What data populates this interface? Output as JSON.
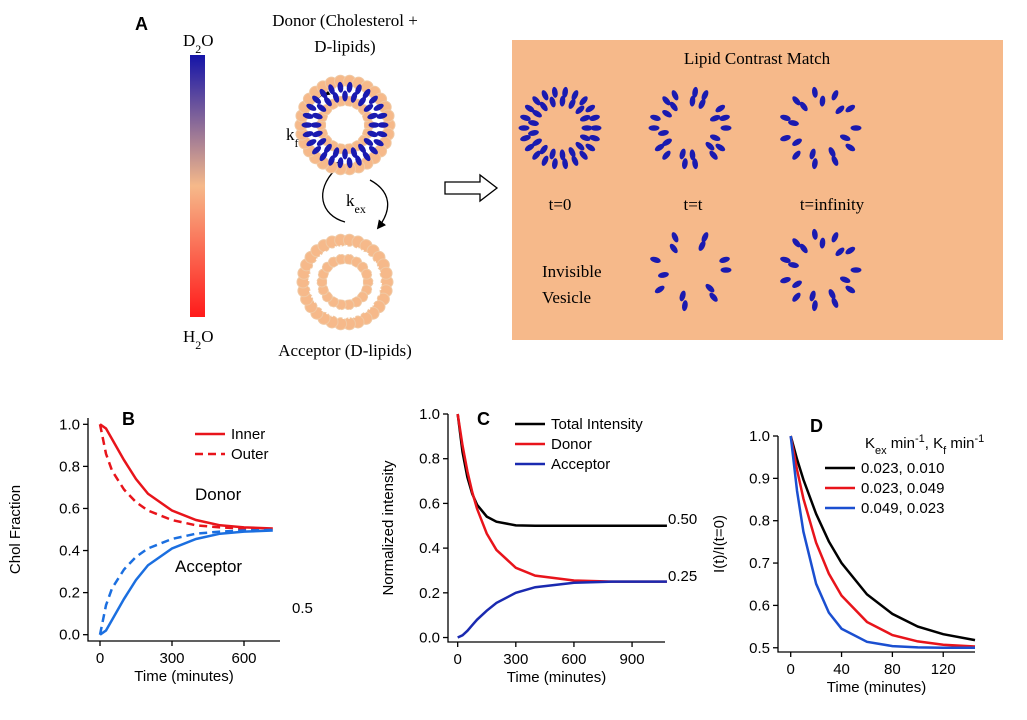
{
  "diagram": {
    "panel_label": "A",
    "scale_top": {
      "base": "D",
      "sub": "2",
      "tail": "O"
    },
    "scale_bottom": {
      "base": "H",
      "sub": "2",
      "tail": "O"
    },
    "donor_label": [
      "Donor (Cholesterol +",
      "D-lipids)"
    ],
    "rate_flip": {
      "base": "k",
      "sub": "f"
    },
    "rate_exchange": {
      "base": "k",
      "sub": "ex"
    },
    "acceptor_label": "Acceptor (D-lipids)",
    "box_title": "Lipid Contrast Match",
    "time_labels": [
      "t=0",
      "t=t",
      "t=infinity"
    ],
    "invisible_label": [
      "Invisible",
      "Vesicle"
    ]
  },
  "chart_data": [
    {
      "type": "line",
      "panel_label": "B",
      "xlabel": "Time (minutes)",
      "ylabel": "Chol Fraction",
      "x": [
        0,
        25,
        50,
        100,
        150,
        200,
        300,
        400,
        500,
        600,
        720
      ],
      "series": [
        {
          "name": "Inner",
          "color": "#e8141b",
          "dash": false,
          "values": [
            1.0,
            0.98,
            0.93,
            0.83,
            0.74,
            0.67,
            0.59,
            0.545,
            0.52,
            0.51,
            0.505
          ]
        },
        {
          "name": "Outer",
          "color": "#e8141b",
          "dash": true,
          "values": [
            1.0,
            0.86,
            0.78,
            0.69,
            0.63,
            0.59,
            0.545,
            0.52,
            0.51,
            0.505,
            0.502
          ]
        },
        {
          "color": "#1b6fe0",
          "dash": false,
          "values": [
            0,
            0.02,
            0.07,
            0.17,
            0.26,
            0.33,
            0.41,
            0.455,
            0.48,
            0.49,
            0.495
          ]
        },
        {
          "color": "#1b6fe0",
          "dash": true,
          "values": [
            0,
            0.14,
            0.22,
            0.31,
            0.37,
            0.41,
            0.455,
            0.48,
            0.49,
            0.495,
            0.498
          ]
        }
      ],
      "annotations": [
        "Donor",
        "Acceptor",
        "0.5"
      ],
      "xlim": [
        -50,
        750
      ],
      "xticks": [
        0,
        300,
        600
      ],
      "ylim": [
        -0.03,
        1.03
      ],
      "yticks": [
        {
          "value": 0,
          "label": "0.0"
        },
        0.2,
        0.4,
        0.6,
        0.8,
        {
          "value": 1,
          "label": "1.0"
        }
      ]
    },
    {
      "type": "line",
      "panel_label": "C",
      "xlabel": "Time (minutes)",
      "ylabel": "Normalized intensity",
      "x": [
        0,
        25,
        50,
        75,
        100,
        150,
        200,
        300,
        400,
        600,
        800,
        1080
      ],
      "series": [
        {
          "name": "Total Intensity",
          "color": "#000000",
          "values": [
            1.0,
            0.83,
            0.717,
            0.643,
            0.594,
            0.541,
            0.518,
            0.502,
            0.5,
            0.5,
            0.5,
            0.5
          ]
        },
        {
          "name": "Donor",
          "color": "#e8141b",
          "values": [
            1.0,
            0.859,
            0.744,
            0.651,
            0.576,
            0.465,
            0.392,
            0.312,
            0.277,
            0.255,
            0.25,
            0.25
          ]
        },
        {
          "name": "Acceptor",
          "color": "#1a2ab0",
          "values": [
            0,
            0.01,
            0.03,
            0.055,
            0.08,
            0.12,
            0.155,
            0.2,
            0.225,
            0.245,
            0.25,
            0.25
          ]
        }
      ],
      "annotations": [
        "0.50",
        "0.25"
      ],
      "xlim": [
        -50,
        1070
      ],
      "xticks": [
        0,
        300,
        600,
        900
      ],
      "ylim": [
        -0.02,
        1.0
      ],
      "yticks": [
        {
          "value": 0,
          "label": "0.0"
        },
        0.2,
        0.4,
        0.6,
        0.8,
        {
          "value": 1,
          "label": "1.0"
        }
      ]
    },
    {
      "type": "line",
      "panel_label": "D",
      "xlabel": "Time (minutes)",
      "ylabel": "I(t)/I(t=0)",
      "legend_header": [
        "K",
        "ex",
        " min",
        "-1",
        ",  K",
        "f",
        " min",
        "-1"
      ],
      "x": [
        0,
        5,
        10,
        20,
        30,
        40,
        60,
        80,
        100,
        120,
        145
      ],
      "series": [
        {
          "name": "0.023,      0.010",
          "color": "#000000",
          "values": [
            1.0,
            0.945,
            0.897,
            0.816,
            0.751,
            0.7,
            0.626,
            0.58,
            0.55,
            0.532,
            0.518
          ]
        },
        {
          "name": "0.023,      0.049",
          "color": "#e8141b",
          "values": [
            1.0,
            0.92,
            0.852,
            0.748,
            0.675,
            0.623,
            0.561,
            0.53,
            0.515,
            0.507,
            0.503
          ]
        },
        {
          "name": "0.049,      0.023",
          "color": "#1b4fd0",
          "values": [
            1.0,
            0.87,
            0.774,
            0.651,
            0.583,
            0.545,
            0.514,
            0.504,
            0.501,
            0.5,
            0.5
          ]
        }
      ],
      "xlim": [
        -10,
        145
      ],
      "xticks": [
        0,
        40,
        80,
        120
      ],
      "ylim": [
        0.49,
        1.0
      ],
      "yticks": [
        {
          "value": 0.5,
          "label": "0.5"
        },
        0.6,
        0.7,
        0.8,
        0.9,
        {
          "value": 1,
          "label": "1.0"
        }
      ]
    }
  ]
}
